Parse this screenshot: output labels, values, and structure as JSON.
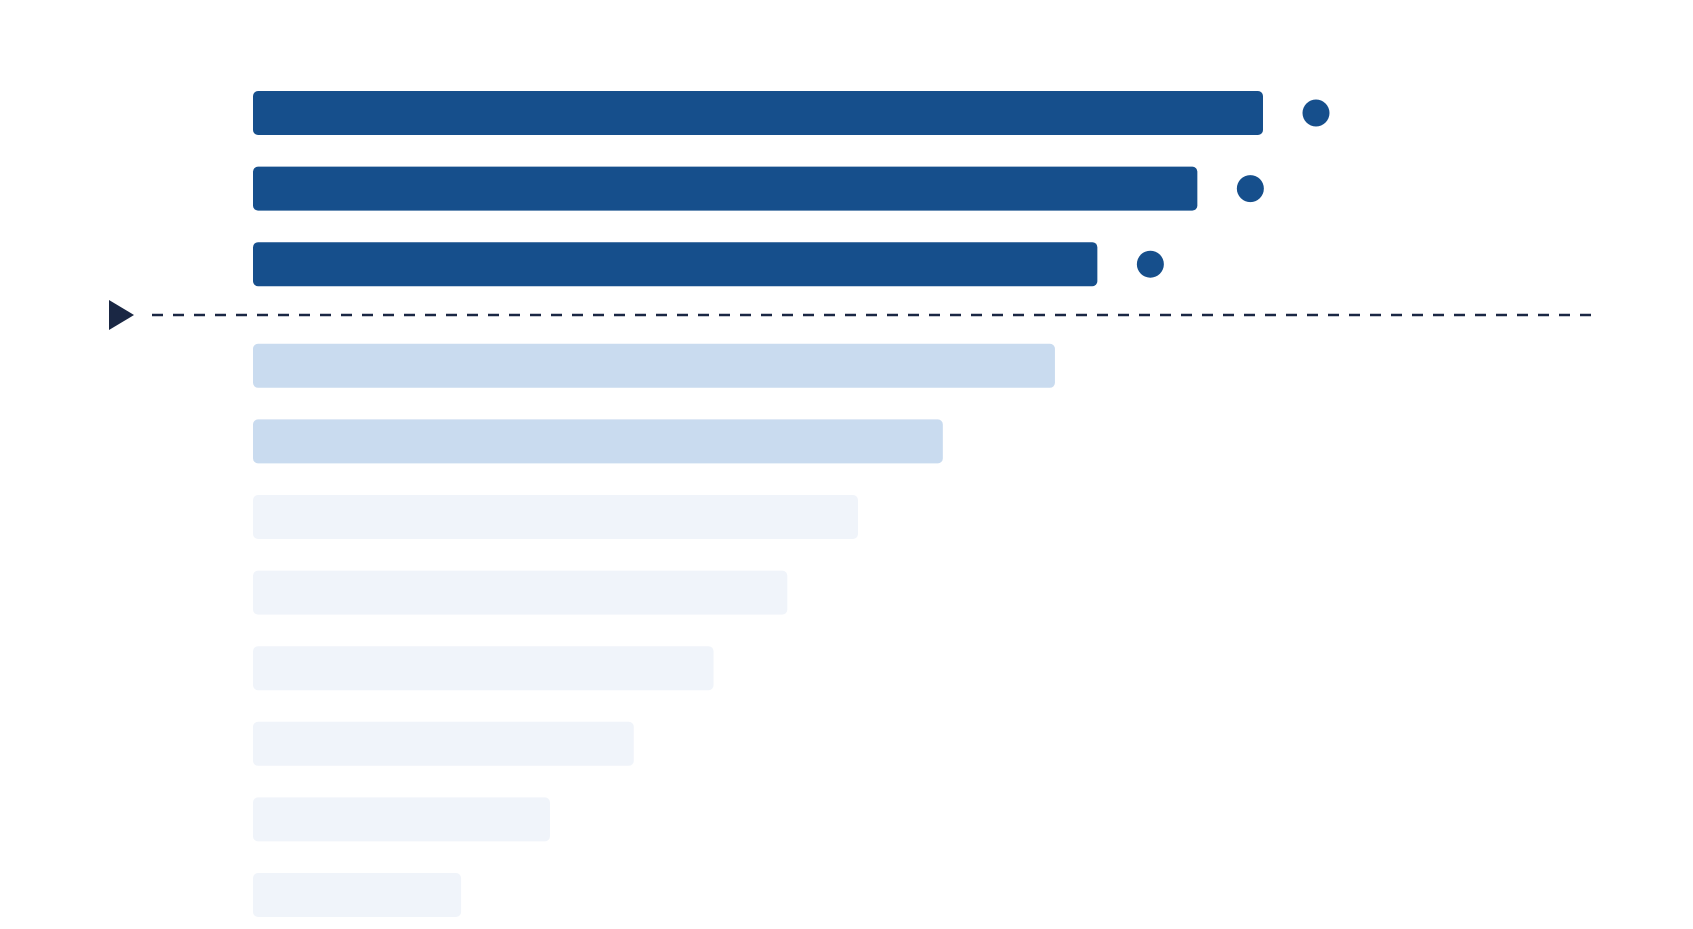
{
  "chart_data": {
    "type": "bar",
    "orientation": "horizontal",
    "categories": [
      "",
      "",
      "",
      "",
      "",
      "",
      "",
      "",
      "",
      "",
      ""
    ],
    "values": [
      100,
      93.5,
      83.6,
      79.4,
      68.3,
      59.9,
      52.9,
      45.6,
      37.7,
      29.4,
      20.6
    ],
    "xlim": [
      0,
      100
    ],
    "grid": false,
    "legend": "none",
    "threshold": {
      "after_rank": 3,
      "style": "dashed",
      "marker": "triangle-right"
    },
    "highlighted_count": 3,
    "colors": {
      "highlight": "#164f8c",
      "near": "#c9dbef",
      "rest": "#f0f4fa",
      "dot": "#164f8c",
      "threshold": "#1a2744"
    }
  }
}
